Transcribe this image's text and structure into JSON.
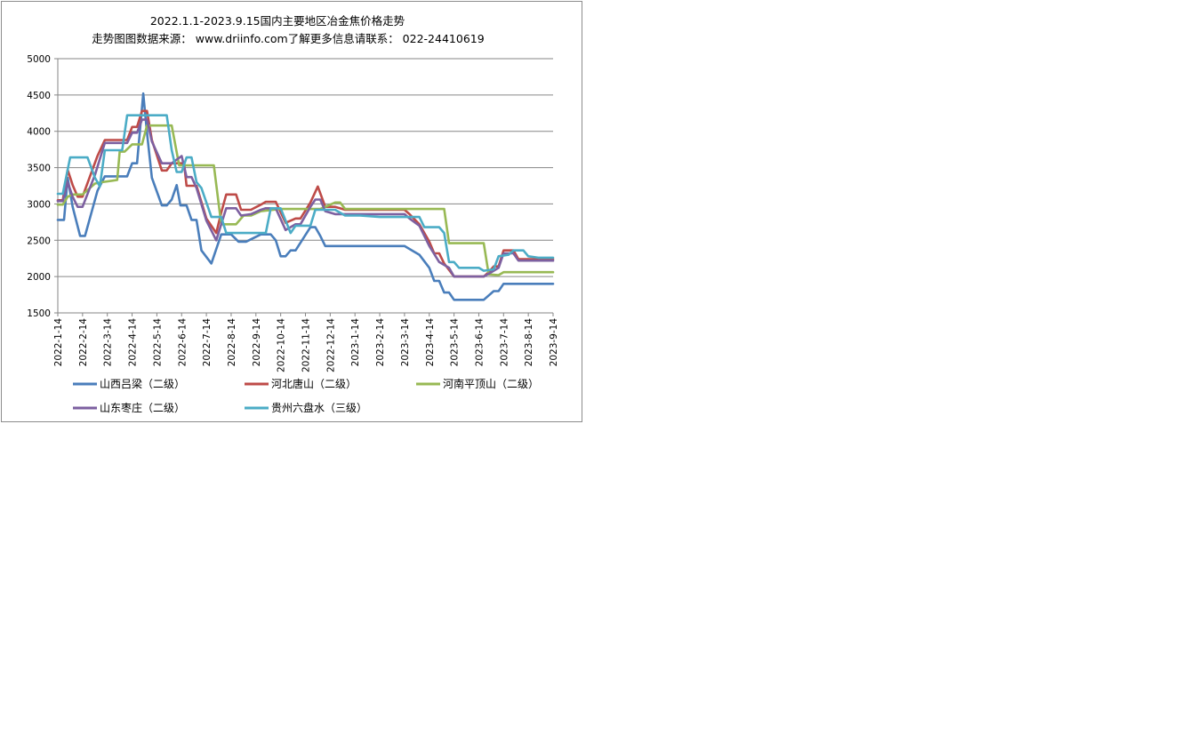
{
  "chart_data": {
    "type": "line",
    "title": "2022.1.1-2023.9.15国内主要地区冶金焦价格走势",
    "subtitle": "走势图图数据来源： www.driinfo.com了解更多信息请联系： 022-24410619",
    "xlabel": "",
    "ylabel": "",
    "ylim": [
      1500,
      5000
    ],
    "yticks": [
      1500,
      2000,
      2500,
      3000,
      3500,
      4000,
      4500,
      5000
    ],
    "xticks": [
      "2022-1-14",
      "2022-2-14",
      "2022-3-14",
      "2022-4-14",
      "2022-5-14",
      "2022-6-14",
      "2022-7-14",
      "2022-8-14",
      "2022-9-14",
      "2022-10-14",
      "2022-11-14",
      "2022-12-14",
      "2023-1-14",
      "2023-2-14",
      "2023-3-14",
      "2023-4-14",
      "2023-5-14",
      "2023-6-14",
      "2023-7-14",
      "2023-8-14",
      "2023-9-14"
    ],
    "grid": true,
    "legend_position": "bottom",
    "series": [
      {
        "name": "山西吕梁（二级）",
        "color": "#4a7ebb",
        "points": [
          [
            0,
            2780
          ],
          [
            0.25,
            2780
          ],
          [
            0.4,
            3360
          ],
          [
            0.6,
            2960
          ],
          [
            0.9,
            2560
          ],
          [
            1.1,
            2560
          ],
          [
            1.6,
            3180
          ],
          [
            1.9,
            3380
          ],
          [
            2.8,
            3380
          ],
          [
            3.0,
            3560
          ],
          [
            3.2,
            3560
          ],
          [
            3.45,
            4520
          ],
          [
            3.6,
            3980
          ],
          [
            3.8,
            3360
          ],
          [
            4.2,
            2980
          ],
          [
            4.4,
            2980
          ],
          [
            4.6,
            3060
          ],
          [
            4.8,
            3260
          ],
          [
            4.95,
            2980
          ],
          [
            5.2,
            2980
          ],
          [
            5.4,
            2780
          ],
          [
            5.6,
            2780
          ],
          [
            5.8,
            2360
          ],
          [
            6.2,
            2180
          ],
          [
            6.6,
            2580
          ],
          [
            7.0,
            2580
          ],
          [
            7.3,
            2480
          ],
          [
            7.6,
            2480
          ],
          [
            8.2,
            2580
          ],
          [
            8.6,
            2580
          ],
          [
            8.8,
            2500
          ],
          [
            9.0,
            2280
          ],
          [
            9.2,
            2280
          ],
          [
            9.4,
            2360
          ],
          [
            9.6,
            2360
          ],
          [
            10.2,
            2680
          ],
          [
            10.4,
            2680
          ],
          [
            10.6,
            2560
          ],
          [
            10.8,
            2420
          ],
          [
            12.0,
            2420
          ],
          [
            13.0,
            2420
          ],
          [
            14.0,
            2420
          ],
          [
            14.3,
            2360
          ],
          [
            14.6,
            2300
          ],
          [
            15.0,
            2120
          ],
          [
            15.2,
            1940
          ],
          [
            15.4,
            1940
          ],
          [
            15.6,
            1780
          ],
          [
            15.8,
            1780
          ],
          [
            16.0,
            1680
          ],
          [
            17.2,
            1680
          ],
          [
            17.6,
            1800
          ],
          [
            17.8,
            1800
          ],
          [
            18.0,
            1900
          ],
          [
            19.0,
            1900
          ],
          [
            20.0,
            1900
          ]
        ]
      },
      {
        "name": "河北唐山（二级）",
        "color": "#be4b48",
        "points": [
          [
            0,
            3050
          ],
          [
            0.2,
            3050
          ],
          [
            0.4,
            3470
          ],
          [
            0.6,
            3260
          ],
          [
            0.8,
            3100
          ],
          [
            1.0,
            3100
          ],
          [
            1.6,
            3660
          ],
          [
            1.9,
            3880
          ],
          [
            2.8,
            3880
          ],
          [
            3.0,
            4060
          ],
          [
            3.2,
            4060
          ],
          [
            3.4,
            4280
          ],
          [
            3.6,
            4280
          ],
          [
            3.8,
            3880
          ],
          [
            4.2,
            3460
          ],
          [
            4.4,
            3460
          ],
          [
            4.6,
            3560
          ],
          [
            5.1,
            3560
          ],
          [
            5.2,
            3250
          ],
          [
            5.4,
            3250
          ],
          [
            5.6,
            3250
          ],
          [
            6.0,
            2800
          ],
          [
            6.4,
            2600
          ],
          [
            6.6,
            2880
          ],
          [
            6.8,
            3130
          ],
          [
            7.2,
            3130
          ],
          [
            7.4,
            2920
          ],
          [
            7.8,
            2920
          ],
          [
            8.2,
            2990
          ],
          [
            8.4,
            3030
          ],
          [
            8.8,
            3030
          ],
          [
            9.2,
            2740
          ],
          [
            9.6,
            2800
          ],
          [
            9.8,
            2800
          ],
          [
            10.2,
            3020
          ],
          [
            10.5,
            3240
          ],
          [
            10.8,
            2960
          ],
          [
            11.2,
            2960
          ],
          [
            11.6,
            2920
          ],
          [
            12.2,
            2920
          ],
          [
            13.0,
            2920
          ],
          [
            14.0,
            2920
          ],
          [
            14.2,
            2860
          ],
          [
            14.6,
            2720
          ],
          [
            15.0,
            2480
          ],
          [
            15.2,
            2320
          ],
          [
            15.4,
            2320
          ],
          [
            15.6,
            2180
          ],
          [
            16.0,
            2000
          ],
          [
            17.2,
            2000
          ],
          [
            17.4,
            2060
          ],
          [
            17.6,
            2140
          ],
          [
            17.8,
            2140
          ],
          [
            18.0,
            2360
          ],
          [
            18.4,
            2360
          ],
          [
            18.6,
            2240
          ],
          [
            19.0,
            2240
          ],
          [
            20.0,
            2240
          ]
        ]
      },
      {
        "name": "河南平顶山（二级）",
        "color": "#98b954",
        "points": [
          [
            0,
            2990
          ],
          [
            0.2,
            2990
          ],
          [
            0.4,
            3100
          ],
          [
            0.6,
            3130
          ],
          [
            0.8,
            3130
          ],
          [
            1.0,
            3130
          ],
          [
            1.5,
            3280
          ],
          [
            1.8,
            3300
          ],
          [
            2.4,
            3330
          ],
          [
            2.5,
            3720
          ],
          [
            2.7,
            3720
          ],
          [
            3.0,
            3820
          ],
          [
            3.4,
            3820
          ],
          [
            3.6,
            4080
          ],
          [
            4.6,
            4080
          ],
          [
            4.9,
            3530
          ],
          [
            6.3,
            3530
          ],
          [
            6.6,
            2720
          ],
          [
            7.2,
            2720
          ],
          [
            7.5,
            2840
          ],
          [
            7.8,
            2840
          ],
          [
            8.2,
            2900
          ],
          [
            9.0,
            2930
          ],
          [
            10.2,
            2930
          ],
          [
            10.6,
            2930
          ],
          [
            11.2,
            3020
          ],
          [
            11.4,
            3020
          ],
          [
            11.6,
            2930
          ],
          [
            12.0,
            2930
          ],
          [
            13.0,
            2930
          ],
          [
            14.0,
            2930
          ],
          [
            15.0,
            2930
          ],
          [
            15.6,
            2930
          ],
          [
            15.8,
            2460
          ],
          [
            17.2,
            2460
          ],
          [
            17.4,
            2030
          ],
          [
            17.8,
            2020
          ],
          [
            18.0,
            2060
          ],
          [
            19.0,
            2060
          ],
          [
            20.0,
            2060
          ]
        ]
      },
      {
        "name": "山东枣庄（二级）",
        "color": "#7d60a0",
        "points": [
          [
            0,
            3040
          ],
          [
            0.2,
            3040
          ],
          [
            0.4,
            3300
          ],
          [
            0.6,
            3100
          ],
          [
            0.8,
            2960
          ],
          [
            1.0,
            2960
          ],
          [
            1.5,
            3400
          ],
          [
            1.9,
            3840
          ],
          [
            2.8,
            3840
          ],
          [
            3.0,
            3980
          ],
          [
            3.2,
            3980
          ],
          [
            3.4,
            4160
          ],
          [
            3.6,
            4160
          ],
          [
            3.8,
            3860
          ],
          [
            4.2,
            3560
          ],
          [
            4.4,
            3560
          ],
          [
            4.6,
            3560
          ],
          [
            5.0,
            3660
          ],
          [
            5.2,
            3370
          ],
          [
            5.4,
            3370
          ],
          [
            5.6,
            3220
          ],
          [
            6.0,
            2770
          ],
          [
            6.4,
            2500
          ],
          [
            6.6,
            2720
          ],
          [
            6.8,
            2940
          ],
          [
            7.2,
            2940
          ],
          [
            7.4,
            2840
          ],
          [
            7.8,
            2860
          ],
          [
            8.2,
            2920
          ],
          [
            8.4,
            2940
          ],
          [
            8.8,
            2940
          ],
          [
            9.2,
            2640
          ],
          [
            9.6,
            2720
          ],
          [
            9.8,
            2720
          ],
          [
            10.2,
            2960
          ],
          [
            10.4,
            3060
          ],
          [
            10.6,
            3060
          ],
          [
            10.8,
            2900
          ],
          [
            11.2,
            2860
          ],
          [
            11.6,
            2860
          ],
          [
            12.2,
            2860
          ],
          [
            13.0,
            2860
          ],
          [
            14.0,
            2860
          ],
          [
            14.2,
            2800
          ],
          [
            14.6,
            2700
          ],
          [
            15.0,
            2420
          ],
          [
            15.4,
            2200
          ],
          [
            15.8,
            2120
          ],
          [
            16.0,
            2000
          ],
          [
            17.2,
            2000
          ],
          [
            17.6,
            2080
          ],
          [
            17.8,
            2120
          ],
          [
            18.0,
            2320
          ],
          [
            18.4,
            2320
          ],
          [
            18.6,
            2220
          ],
          [
            19.0,
            2220
          ],
          [
            20.0,
            2220
          ]
        ]
      },
      {
        "name": "贵州六盘水（三级）",
        "color": "#4bacc6",
        "points": [
          [
            0,
            3140
          ],
          [
            0.2,
            3140
          ],
          [
            0.5,
            3640
          ],
          [
            1.2,
            3640
          ],
          [
            1.5,
            3360
          ],
          [
            1.7,
            3240
          ],
          [
            1.9,
            3740
          ],
          [
            2.6,
            3740
          ],
          [
            2.8,
            4220
          ],
          [
            3.4,
            4220
          ],
          [
            3.8,
            4220
          ],
          [
            4.4,
            4220
          ],
          [
            4.6,
            3740
          ],
          [
            4.8,
            3440
          ],
          [
            5.0,
            3440
          ],
          [
            5.2,
            3640
          ],
          [
            5.4,
            3640
          ],
          [
            5.6,
            3300
          ],
          [
            5.8,
            3220
          ],
          [
            6.2,
            2820
          ],
          [
            6.6,
            2820
          ],
          [
            6.8,
            2600
          ],
          [
            7.6,
            2600
          ],
          [
            8.4,
            2600
          ],
          [
            8.6,
            2940
          ],
          [
            9.0,
            2940
          ],
          [
            9.4,
            2600
          ],
          [
            9.6,
            2700
          ],
          [
            10.2,
            2700
          ],
          [
            10.4,
            2920
          ],
          [
            10.8,
            2920
          ],
          [
            11.2,
            2920
          ],
          [
            11.6,
            2840
          ],
          [
            12.2,
            2840
          ],
          [
            13.0,
            2820
          ],
          [
            14.0,
            2820
          ],
          [
            14.6,
            2820
          ],
          [
            14.8,
            2680
          ],
          [
            15.4,
            2680
          ],
          [
            15.6,
            2600
          ],
          [
            15.8,
            2200
          ],
          [
            16.0,
            2200
          ],
          [
            16.2,
            2120
          ],
          [
            17.0,
            2120
          ],
          [
            17.2,
            2080
          ],
          [
            17.6,
            2100
          ],
          [
            17.8,
            2280
          ],
          [
            18.2,
            2300
          ],
          [
            18.4,
            2360
          ],
          [
            18.8,
            2360
          ],
          [
            19.0,
            2280
          ],
          [
            19.4,
            2260
          ],
          [
            20.0,
            2260
          ]
        ]
      }
    ]
  }
}
